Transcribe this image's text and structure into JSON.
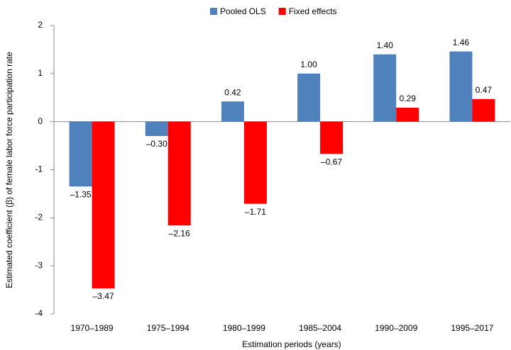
{
  "chart_data": {
    "type": "bar",
    "categories": [
      "1970–1989",
      "1975–1994",
      "1980–1999",
      "1985–2004",
      "1990–2009",
      "1995–2017"
    ],
    "series": [
      {
        "name": "Pooled OLS",
        "color": "#4f81bd",
        "values": [
          -1.35,
          -0.3,
          0.42,
          1.0,
          1.4,
          1.46
        ],
        "value_labels": [
          "–1.35",
          "–0.30",
          "0.42",
          "1.00",
          "1.40",
          "1.46"
        ]
      },
      {
        "name": "Fixed effects",
        "color": "#ff0000",
        "values": [
          -3.47,
          -2.16,
          -1.71,
          -0.67,
          0.29,
          0.47
        ],
        "value_labels": [
          "–3.47",
          "–2.16",
          "–1.71",
          "–0.67",
          "0.29",
          "0.47"
        ]
      }
    ],
    "ylim": [
      -4,
      2
    ],
    "yticks": [
      -4,
      -3,
      -2,
      -1,
      0,
      1,
      2
    ],
    "y_label": "Estimated coefficient (β) of female labor force participation  rate",
    "x_label": "Estimation periods (years)",
    "legend": "top"
  }
}
